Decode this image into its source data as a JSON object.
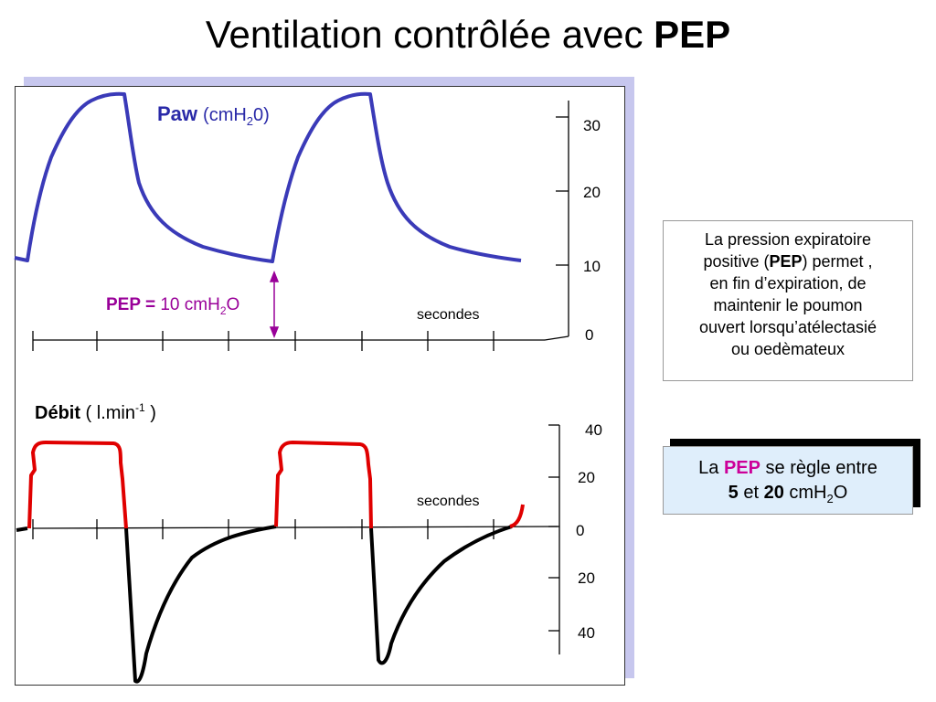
{
  "title": {
    "prefix": "Ventilation contrôlée avec ",
    "bold": "PEP"
  },
  "paw_chart": {
    "label_bold": "Paw",
    "label_unit_pre": "(cmH",
    "label_unit_sub": "2",
    "label_unit_post": "0)",
    "ticks": [
      "30",
      "20",
      "10",
      "0"
    ],
    "x_label": "secondes",
    "pep_label_bold": "PEP =",
    "pep_value_pre": " 10 cmH",
    "pep_value_sub": "2",
    "pep_value_post": "O",
    "line_color": "#3a3ab8",
    "pep_color": "#990099"
  },
  "flow_chart": {
    "label_bold": "Débit",
    "label_unit_pre": " ( l.min",
    "label_unit_sup": "-1",
    "label_unit_post": " )",
    "ticks": [
      "40",
      "20",
      "0",
      "20",
      "40"
    ],
    "x_label": "secondes",
    "insp_color": "#e00000",
    "exp_color": "#000000"
  },
  "info_box": {
    "l1": "La pression expiratoire",
    "l2_pre": "positive (",
    "l2_bold": "PEP",
    "l2_post": ") permet ,",
    "l3": "en fin d’expiration, de",
    "l4": "maintenir le poumon",
    "l5": "ouvert lorsqu’atélectasié",
    "l6": "ou oedèmateux"
  },
  "pep_box": {
    "pre": "La ",
    "pep": "PEP",
    "post": " se règle entre",
    "v1": "5",
    "and": " et ",
    "v2": "20",
    "unit_pre": " cmH",
    "unit_sub": "2",
    "unit_post": "O"
  }
}
